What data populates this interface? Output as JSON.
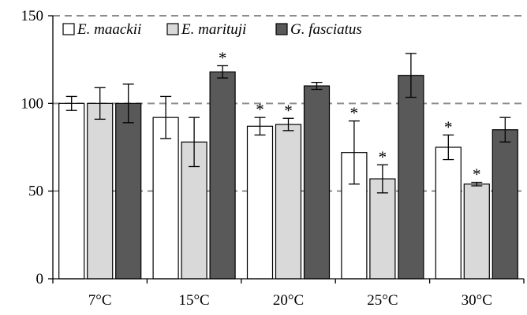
{
  "chart_data": {
    "type": "bar",
    "title": "",
    "xlabel": "",
    "ylabel": "",
    "ylim": [
      0,
      150
    ],
    "yticks": [
      0,
      50,
      100,
      150
    ],
    "grid": "horizontal-dashed",
    "legend_position": "top",
    "categories": [
      "7°C",
      "15°C",
      "20°C",
      "25°C",
      "30°C"
    ],
    "series": [
      {
        "name": "E. maackii",
        "color": "#ffffff",
        "values": [
          100,
          92,
          87,
          72,
          75
        ],
        "errors": [
          4,
          12,
          5,
          18,
          7
        ],
        "significant": [
          false,
          false,
          true,
          true,
          true
        ]
      },
      {
        "name": "E. marituji",
        "color": "#d9d9d9",
        "values": [
          100,
          78,
          88,
          57,
          54
        ],
        "errors": [
          9,
          14,
          3.5,
          8,
          1
        ],
        "significant": [
          false,
          false,
          true,
          true,
          true
        ]
      },
      {
        "name": "G. fasciatus",
        "color": "#595959",
        "values": [
          100,
          118,
          110,
          116,
          85
        ],
        "errors": [
          11,
          3.5,
          2,
          12.5,
          7
        ],
        "significant": [
          false,
          true,
          false,
          false,
          false
        ]
      }
    ],
    "significance_marker": "*"
  }
}
